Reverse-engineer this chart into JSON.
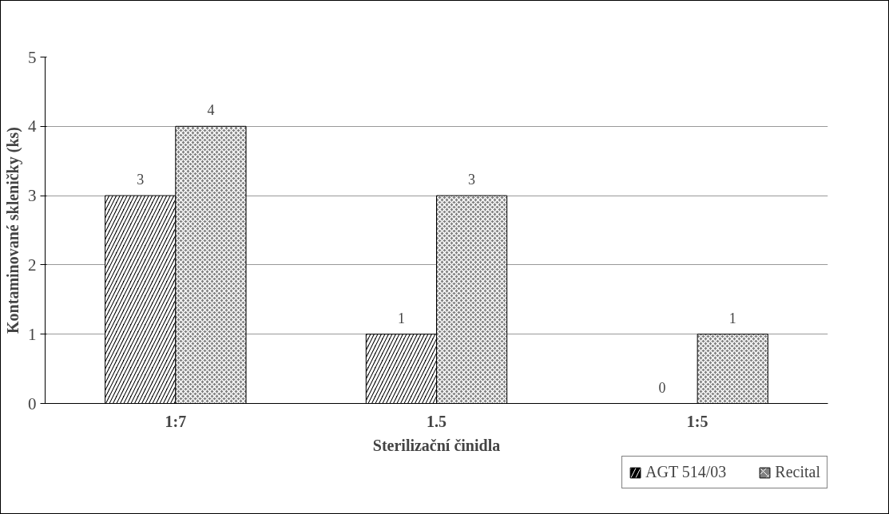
{
  "chart_data": {
    "type": "bar",
    "xlabel": "Sterilizační činidla",
    "ylabel": "Kontaminované skleničky (ks)",
    "categories": [
      "1:7",
      "1.5",
      "1:5"
    ],
    "series": [
      {
        "name": "AGT 514/03",
        "color": "#000000",
        "values": [
          3,
          1,
          0
        ]
      },
      {
        "name": "Recital",
        "color": "#808080",
        "values": [
          4,
          3,
          1
        ]
      }
    ],
    "ylim": [
      0,
      5
    ],
    "yticks": [
      0,
      1,
      2,
      3,
      4,
      5
    ],
    "grid": "y",
    "legend": "bottom right",
    "data_labels": true
  }
}
